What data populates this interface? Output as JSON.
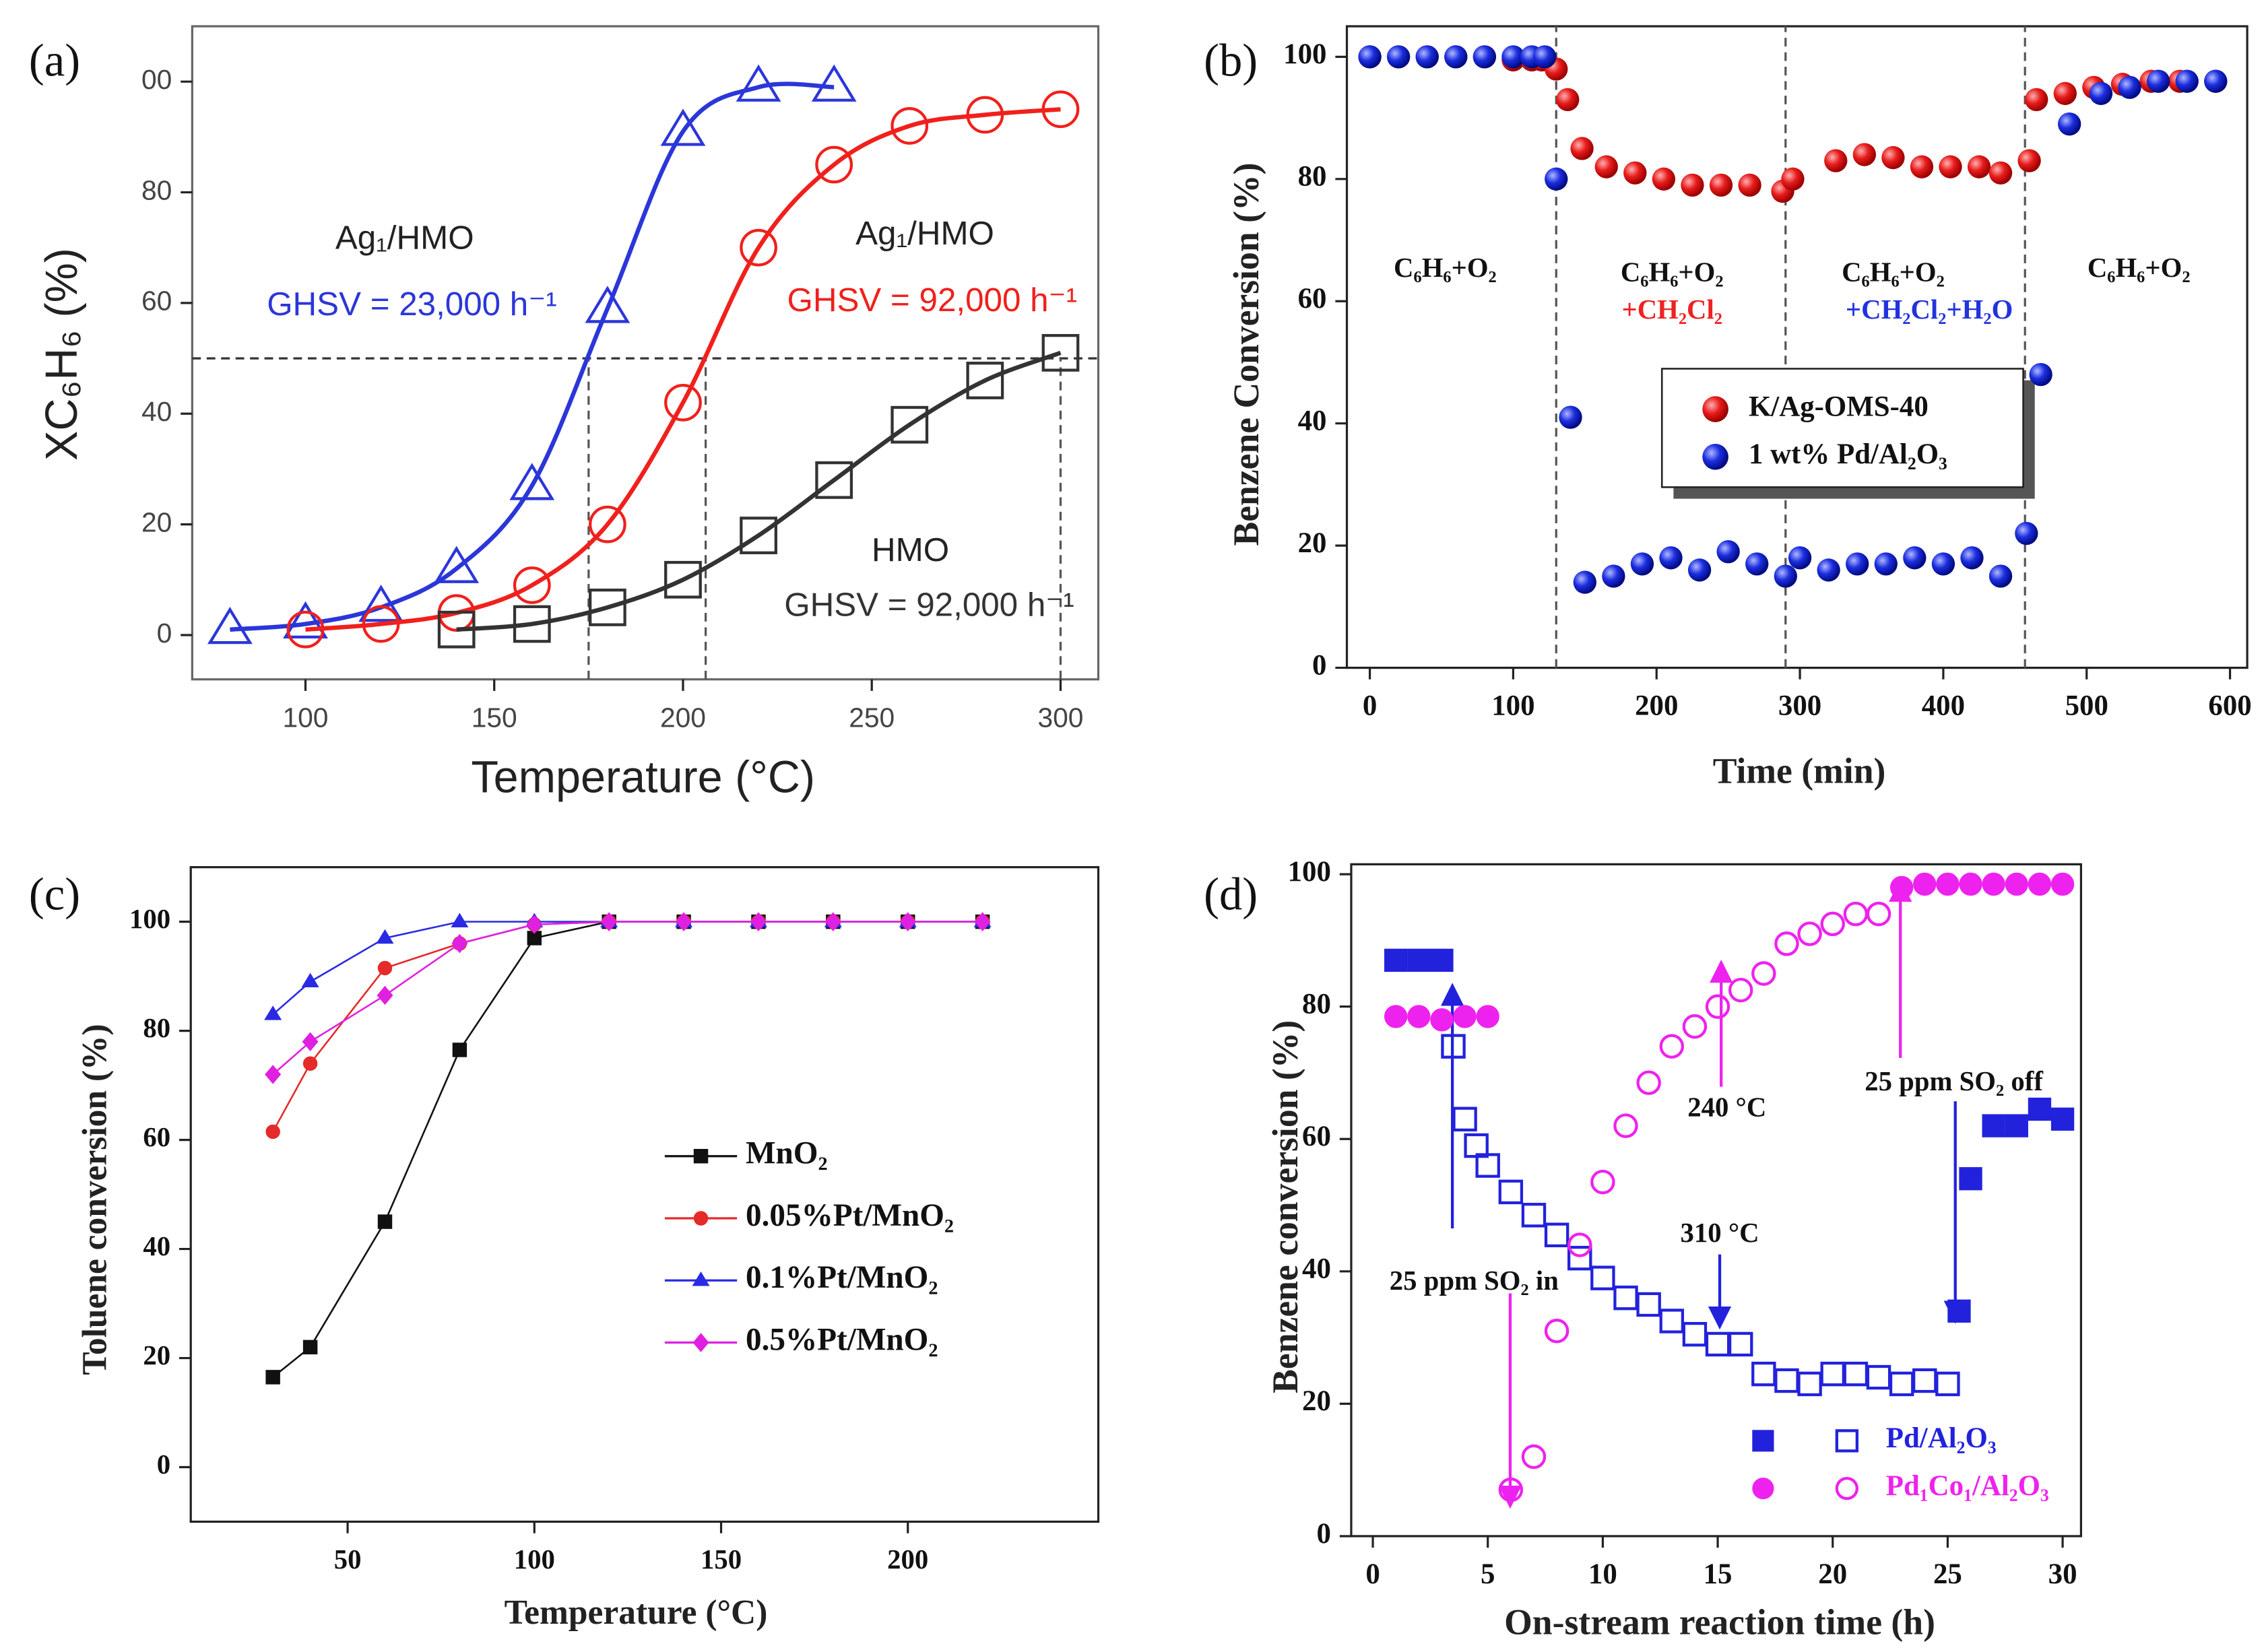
{
  "chart_data": [
    {
      "type": "line",
      "panel": "(a)",
      "xlabel": "Temperature (°C)",
      "ylabel": "XC₆H₆ (%)",
      "xlim": [
        70,
        310
      ],
      "ylim": [
        -8,
        110
      ],
      "xticks": [
        100,
        150,
        200,
        250,
        300
      ],
      "yticks": [
        0,
        20,
        40,
        60,
        80,
        {
          "value": 100,
          "label": "00"
        }
      ],
      "smooth": true,
      "marker_fill": "hollow",
      "reference_lines": {
        "y": [
          50
        ],
        "x": [
          175,
          206,
          300
        ]
      },
      "series": [
        {
          "name": "Ag₁/HMO",
          "condition": "GHSV = 23,000 h⁻¹",
          "color": "#2b36d9",
          "marker": "triangle",
          "x": [
            80,
            100,
            120,
            140,
            160,
            180,
            200,
            220,
            240
          ],
          "values": [
            1,
            2,
            5,
            12,
            27,
            59,
            91,
            99,
            99
          ]
        },
        {
          "name": "Ag₁/HMO",
          "condition": "GHSV = 92,000 h⁻¹",
          "color": "#f0201c",
          "marker": "circle",
          "x": [
            100,
            120,
            140,
            160,
            180,
            200,
            220,
            240,
            260,
            280,
            300
          ],
          "values": [
            1,
            2,
            4,
            9,
            20,
            42,
            70,
            85,
            92,
            94,
            95
          ]
        },
        {
          "name": "HMO",
          "condition": "GHSV = 92,000 h⁻¹",
          "color": "#333333",
          "marker": "square",
          "x": [
            140,
            160,
            180,
            200,
            220,
            240,
            260,
            280,
            300
          ],
          "values": [
            1,
            2,
            5,
            10,
            18,
            28,
            38,
            46,
            51
          ]
        }
      ]
    },
    {
      "type": "scatter",
      "panel": "(b)",
      "xlabel": "Time (min)",
      "ylabel": "Benzene Conversion (%)",
      "xlim": [
        -16,
        612
      ],
      "ylim": [
        0,
        105
      ],
      "xticks": [
        0,
        100,
        200,
        300,
        400,
        500,
        600
      ],
      "yticks": [
        0,
        20,
        40,
        60,
        80,
        100
      ],
      "reference_lines": {
        "x": [
          130,
          290,
          457
        ]
      },
      "annotations": [
        {
          "text": "C₆H₆+O₂",
          "color": "#111111"
        },
        {
          "text": "C₆H₆+O₂",
          "color": "#111111"
        },
        {
          "text": "C₆H₆+O₂",
          "color": "#111111"
        },
        {
          "text": "C₆H₆+O₂",
          "color": "#111111"
        },
        {
          "text": "+CH₂Cl₂",
          "color": "#ee2222"
        },
        {
          "text": "+CH₂Cl₂+H₂O",
          "color": "#2233dd"
        }
      ],
      "series": [
        {
          "name": "K/Ag-OMS-40",
          "color": "#e81c1c",
          "marker": "sphere",
          "x": [
            0,
            20,
            40,
            60,
            80,
            100,
            113,
            120,
            130,
            138,
            148,
            165,
            185,
            205,
            225,
            245,
            265,
            288,
            295,
            325,
            345,
            365,
            385,
            405,
            425,
            440,
            460,
            465,
            485,
            505,
            525,
            545,
            565,
            590
          ],
          "values": [
            100,
            100,
            100,
            100,
            100,
            99.5,
            99.5,
            99.5,
            98,
            93,
            85,
            82,
            81,
            80,
            79,
            79,
            79,
            78,
            80,
            83,
            84,
            83.5,
            82,
            82,
            82,
            81,
            83,
            93,
            94,
            95,
            95.5,
            96,
            96,
            96
          ]
        },
        {
          "name": "1 wt% Pd/Al₂O₃",
          "color": "#1c2ee0",
          "marker": "sphere",
          "x": [
            0,
            20,
            40,
            60,
            80,
            100,
            113,
            122,
            130,
            140,
            150,
            170,
            190,
            210,
            230,
            250,
            270,
            290,
            300,
            320,
            340,
            360,
            380,
            400,
            420,
            440,
            458,
            468,
            488,
            510,
            530,
            550,
            570,
            590
          ],
          "values": [
            100,
            100,
            100,
            100,
            100,
            100,
            100,
            100,
            80,
            41,
            14,
            15,
            17,
            18,
            16,
            19,
            17,
            15,
            18,
            16,
            17,
            17,
            18,
            17,
            18,
            15,
            22,
            48,
            89,
            94,
            95,
            96,
            96,
            96
          ]
        }
      ]
    },
    {
      "type": "line",
      "panel": "(c)",
      "xlabel": "Temperature (°C)",
      "ylabel": "Toluene conversion (%)",
      "xlim": [
        8,
        251
      ],
      "ylim": [
        -10,
        110
      ],
      "xticks": [
        50,
        100,
        150,
        200
      ],
      "yticks": [
        0,
        20,
        40,
        60,
        80,
        100
      ],
      "smooth": false,
      "marker_fill": "solid",
      "series": [
        {
          "name": "MnO₂",
          "color": "#111111",
          "marker": "square",
          "x": [
            30,
            40,
            60,
            80,
            100,
            120,
            140,
            160,
            180,
            200,
            220
          ],
          "values": [
            16.5,
            22,
            45,
            76.5,
            97,
            100,
            100,
            100,
            100,
            100,
            100
          ]
        },
        {
          "name": "0.05%Pt/MnO₂",
          "color": "#e52a2a",
          "marker": "circle",
          "x": [
            30,
            40,
            60,
            80,
            100,
            120,
            140,
            160,
            180,
            200,
            220
          ],
          "values": [
            61.5,
            74,
            91.5,
            96,
            99.5,
            100,
            100,
            100,
            100,
            100,
            100
          ]
        },
        {
          "name": "0.1%Pt/MnO₂",
          "color": "#2a2ae5",
          "marker": "triangle",
          "x": [
            30,
            40,
            60,
            80,
            100,
            120,
            140,
            160,
            180,
            200,
            220
          ],
          "values": [
            83,
            89,
            97,
            100,
            100,
            100,
            100,
            100,
            100,
            100,
            100
          ]
        },
        {
          "name": "0.5%Pt/MnO₂",
          "color": "#e020e0",
          "marker": "diamond",
          "x": [
            30,
            40,
            60,
            80,
            100,
            120,
            140,
            160,
            180,
            200,
            220
          ],
          "values": [
            72,
            78,
            86.5,
            96,
            99.5,
            100,
            100,
            100,
            100,
            100,
            100
          ]
        }
      ]
    },
    {
      "type": "scatter",
      "panel": "(d)",
      "xlabel": "On-stream reaction time (h)",
      "ylabel": "Benzene conversion (%)",
      "xlim": [
        -0.94,
        30.8
      ],
      "ylim": [
        0,
        101.5
      ],
      "xticks": [
        0,
        5,
        10,
        15,
        20,
        25,
        30
      ],
      "yticks": [
        0,
        20,
        40,
        60,
        80,
        100
      ],
      "annotations": [
        {
          "text": "25 ppm SO₂ in",
          "color": "#111111"
        },
        {
          "text": "240 °C",
          "color": "#111111"
        },
        {
          "text": "310 °C",
          "color": "#111111"
        },
        {
          "text": "25 ppm SO₂ off",
          "color": "#111111"
        }
      ],
      "series": [
        {
          "name": "Pd/Al₂O₃",
          "color": "#2222dd",
          "marker": "square",
          "groups": [
            {
              "fill": "solid",
              "x": [
                1,
                2,
                3,
                25.5,
                26,
                27,
                28,
                29,
                30
              ],
              "values": [
                87,
                87,
                87,
                34,
                54,
                62,
                62,
                64.5,
                63
              ]
            },
            {
              "fill": "hollow",
              "x": [
                3.5,
                4,
                4.5,
                5,
                6,
                7,
                8,
                9,
                10,
                11,
                12,
                13,
                14,
                15,
                16,
                17,
                18,
                19,
                20,
                21,
                22,
                23,
                24,
                25
              ],
              "values": [
                74,
                63,
                59,
                56,
                52,
                48.5,
                45.5,
                42,
                39,
                36,
                35,
                32.5,
                30.5,
                29,
                29,
                24.5,
                23.5,
                23,
                24.5,
                24.5,
                24,
                23,
                23.5,
                23
              ]
            }
          ]
        },
        {
          "name": "Pd₁Co₁/Al₂O₃",
          "color": "#ee22ee",
          "marker": "circle",
          "groups": [
            {
              "fill": "solid",
              "x": [
                1,
                2,
                3,
                4,
                5,
                23,
                24,
                25,
                26,
                27,
                28,
                29,
                30
              ],
              "values": [
                78.5,
                78.5,
                78,
                78.5,
                78.5,
                98,
                98.5,
                98.5,
                98.5,
                98.5,
                98.5,
                98.5,
                98.5
              ]
            },
            {
              "fill": "hollow",
              "x": [
                6,
                7,
                8,
                9,
                10,
                11,
                12,
                13,
                14,
                15,
                16,
                17,
                18,
                19,
                20,
                21,
                22
              ],
              "values": [
                7,
                12,
                31,
                44,
                53.5,
                62,
                68.5,
                74,
                77,
                80,
                82.5,
                85,
                89.5,
                91,
                92.5,
                94,
                94
              ]
            }
          ]
        }
      ]
    }
  ]
}
